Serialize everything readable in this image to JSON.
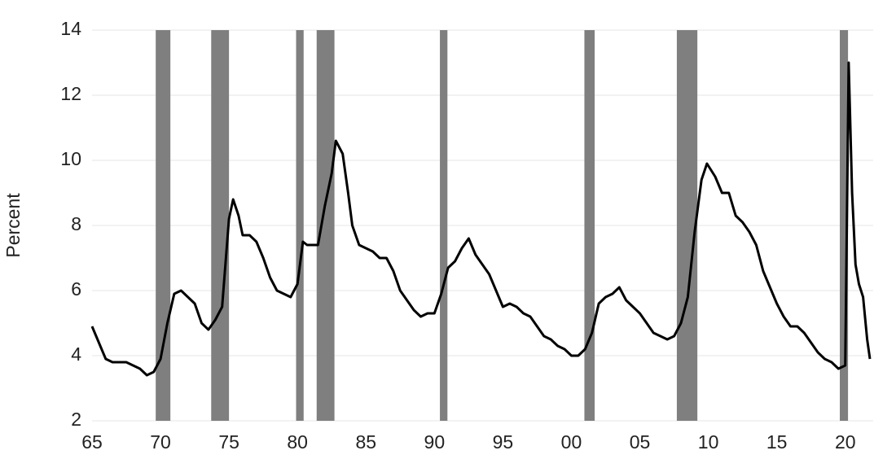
{
  "chart_data": {
    "type": "line",
    "y_label": "Percent",
    "x": [
      1965.0,
      1965.5,
      1966.0,
      1966.5,
      1967.0,
      1967.5,
      1968.0,
      1968.5,
      1969.0,
      1969.5,
      1970.0,
      1970.5,
      1971.0,
      1971.5,
      1972.0,
      1972.5,
      1973.0,
      1973.5,
      1974.0,
      1974.5,
      1975.0,
      1975.3,
      1975.7,
      1976.0,
      1976.5,
      1977.0,
      1977.5,
      1978.0,
      1978.5,
      1979.0,
      1979.5,
      1980.0,
      1980.4,
      1980.7,
      1981.0,
      1981.5,
      1982.0,
      1982.5,
      1982.8,
      1983.3,
      1983.7,
      1984.0,
      1984.5,
      1985.0,
      1985.5,
      1986.0,
      1986.5,
      1987.0,
      1987.5,
      1988.0,
      1988.5,
      1989.0,
      1989.5,
      1990.0,
      1990.5,
      1991.0,
      1991.5,
      1992.0,
      1992.5,
      1993.0,
      1993.5,
      1994.0,
      1994.5,
      1995.0,
      1995.5,
      1996.0,
      1996.5,
      1997.0,
      1997.5,
      1998.0,
      1998.5,
      1999.0,
      1999.5,
      2000.0,
      2000.5,
      2001.0,
      2001.5,
      2002.0,
      2002.5,
      2003.0,
      2003.5,
      2004.0,
      2004.5,
      2005.0,
      2005.5,
      2006.0,
      2006.5,
      2007.0,
      2007.5,
      2008.0,
      2008.5,
      2009.0,
      2009.5,
      2009.9,
      2010.5,
      2011.0,
      2011.5,
      2012.0,
      2012.5,
      2013.0,
      2013.5,
      2014.0,
      2014.5,
      2015.0,
      2015.5,
      2016.0,
      2016.5,
      2017.0,
      2017.5,
      2018.0,
      2018.5,
      2019.0,
      2019.5,
      2020.0,
      2020.25,
      2020.5,
      2020.75,
      2021.0,
      2021.3,
      2021.6,
      2021.8
    ],
    "series": [
      {
        "color": "#000000",
        "values": [
          4.9,
          4.4,
          3.9,
          3.8,
          3.8,
          3.8,
          3.7,
          3.6,
          3.4,
          3.5,
          3.9,
          5.0,
          5.9,
          6.0,
          5.8,
          5.6,
          5.0,
          4.8,
          5.1,
          5.5,
          8.2,
          8.8,
          8.3,
          7.7,
          7.7,
          7.5,
          7.0,
          6.4,
          6.0,
          5.9,
          5.8,
          6.2,
          7.5,
          7.4,
          7.4,
          7.4,
          8.6,
          9.6,
          10.6,
          10.2,
          9.0,
          8.0,
          7.4,
          7.3,
          7.2,
          7.0,
          7.0,
          6.6,
          6.0,
          5.7,
          5.4,
          5.2,
          5.3,
          5.3,
          5.9,
          6.7,
          6.9,
          7.3,
          7.6,
          7.1,
          6.8,
          6.5,
          6.0,
          5.5,
          5.6,
          5.5,
          5.3,
          5.2,
          4.9,
          4.6,
          4.5,
          4.3,
          4.2,
          4.0,
          4.0,
          4.2,
          4.7,
          5.6,
          5.8,
          5.9,
          6.1,
          5.7,
          5.5,
          5.3,
          5.0,
          4.7,
          4.6,
          4.5,
          4.6,
          5.0,
          5.8,
          7.8,
          9.4,
          9.9,
          9.5,
          9.0,
          9.0,
          8.3,
          8.1,
          7.8,
          7.4,
          6.6,
          6.1,
          5.6,
          5.2,
          4.9,
          4.9,
          4.7,
          4.4,
          4.1,
          3.9,
          3.8,
          3.6,
          3.7,
          13.0,
          9.0,
          6.8,
          6.2,
          5.8,
          4.5,
          3.9
        ]
      }
    ],
    "recessions": [
      [
        1969.65,
        1970.72
      ],
      [
        1973.7,
        1975.0
      ],
      [
        1979.9,
        1980.45
      ],
      [
        1981.4,
        1982.7
      ],
      [
        1990.4,
        1990.95
      ],
      [
        2000.95,
        2001.7
      ],
      [
        2007.7,
        2009.2
      ],
      [
        2019.6,
        2020.2
      ]
    ],
    "recession_color": "#7f7f7f",
    "xlim": [
      1965,
      2021.8
    ],
    "xticks": [
      {
        "value": 1965,
        "label": "65"
      },
      {
        "value": 1970,
        "label": "70"
      },
      {
        "value": 1975,
        "label": "75"
      },
      {
        "value": 1980,
        "label": "80"
      },
      {
        "value": 1985,
        "label": "85"
      },
      {
        "value": 1990,
        "label": "90"
      },
      {
        "value": 1995,
        "label": "95"
      },
      {
        "value": 2000,
        "label": "00"
      },
      {
        "value": 2005,
        "label": "05"
      },
      {
        "value": 2010,
        "label": "10"
      },
      {
        "value": 2015,
        "label": "15"
      },
      {
        "value": 2020,
        "label": "20"
      }
    ],
    "ylim": [
      2,
      14
    ],
    "yticks": [
      2,
      4,
      6,
      8,
      10,
      12,
      14
    ],
    "grid": true
  }
}
